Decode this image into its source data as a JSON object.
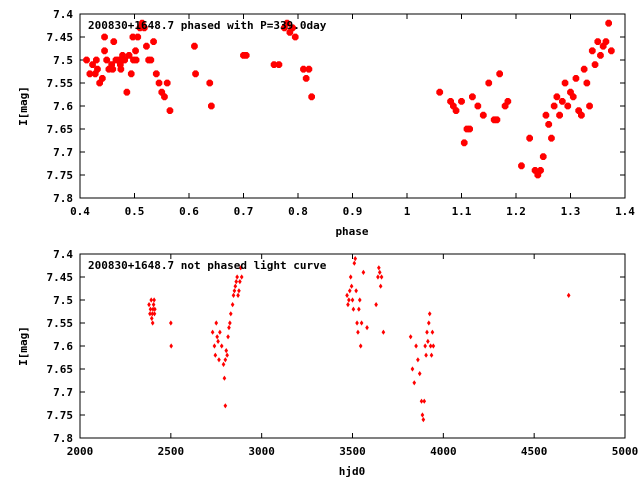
{
  "chart_data": [
    {
      "type": "scatter",
      "title": "200830+1648.7 phased with P=339.0day",
      "xlabel": "phase",
      "ylabel": "I[mag]",
      "xlim": [
        0.4,
        1.4
      ],
      "ylim": [
        7.8,
        7.4
      ],
      "y_inverted": true,
      "grid": false,
      "marker_color": "#ff0000",
      "xticks": [
        "0.4",
        "0.5",
        "0.6",
        "0.7",
        "0.8",
        "0.9",
        "1",
        "1.1",
        "1.2",
        "1.3",
        "1.4"
      ],
      "yticks": [
        "7.4",
        "7.45",
        "7.5",
        "7.55",
        "7.6",
        "7.65",
        "7.7",
        "7.75",
        "7.8"
      ],
      "x": [
        0.412,
        0.418,
        0.423,
        0.428,
        0.432,
        0.436,
        0.441,
        0.445,
        0.449,
        0.453,
        0.458,
        0.462,
        0.466,
        0.47,
        0.474,
        0.478,
        0.482,
        0.486,
        0.49,
        0.494,
        0.498,
        0.502,
        0.506,
        0.51,
        0.514,
        0.518,
        0.522,
        0.526,
        0.53,
        0.535,
        0.54,
        0.545,
        0.55,
        0.555,
        0.56,
        0.565,
        0.61,
        0.612,
        0.638,
        0.641,
        0.7,
        0.705,
        0.756,
        0.765,
        0.775,
        0.78,
        0.785,
        0.79,
        0.795,
        0.81,
        0.815,
        0.82,
        0.825,
        0.43,
        0.445,
        0.46,
        0.475,
        0.497,
        0.503,
        1.06,
        1.08,
        1.085,
        1.09,
        1.1,
        1.105,
        1.11,
        1.115,
        1.12,
        1.13,
        1.14,
        1.15,
        1.16,
        1.165,
        1.17,
        1.18,
        1.185,
        1.21,
        1.225,
        1.235,
        1.24,
        1.245,
        1.25,
        1.255,
        1.26,
        1.265,
        1.27,
        1.275,
        1.28,
        1.285,
        1.29,
        1.295,
        1.3,
        1.305,
        1.31,
        1.315,
        1.32,
        1.325,
        1.33,
        1.335,
        1.34,
        1.345,
        1.35,
        1.355,
        1.36,
        1.365,
        1.37,
        1.375
      ],
      "y": [
        7.5,
        7.53,
        7.51,
        7.53,
        7.52,
        7.55,
        7.54,
        7.45,
        7.5,
        7.52,
        7.51,
        7.46,
        7.5,
        7.5,
        7.51,
        7.49,
        7.5,
        7.57,
        7.49,
        7.53,
        7.5,
        7.48,
        7.45,
        7.43,
        7.42,
        7.43,
        7.47,
        7.5,
        7.5,
        7.46,
        7.53,
        7.55,
        7.57,
        7.58,
        7.55,
        7.61,
        7.47,
        7.53,
        7.55,
        7.6,
        7.49,
        7.49,
        7.51,
        7.51,
        7.43,
        7.42,
        7.44,
        7.43,
        7.45,
        7.52,
        7.54,
        7.52,
        7.58,
        7.5,
        7.48,
        7.52,
        7.52,
        7.45,
        7.5,
        7.57,
        7.59,
        7.6,
        7.61,
        7.59,
        7.68,
        7.65,
        7.65,
        7.58,
        7.6,
        7.62,
        7.55,
        7.63,
        7.63,
        7.53,
        7.6,
        7.59,
        7.73,
        7.67,
        7.74,
        7.75,
        7.74,
        7.71,
        7.62,
        7.64,
        7.67,
        7.6,
        7.58,
        7.62,
        7.59,
        7.55,
        7.6,
        7.57,
        7.58,
        7.54,
        7.61,
        7.62,
        7.52,
        7.55,
        7.6,
        7.48,
        7.51,
        7.46,
        7.49,
        7.47,
        7.46,
        7.42,
        7.48
      ]
    },
    {
      "type": "scatter",
      "title": "200830+1648.7 not phased light curve",
      "xlabel": "hjd0",
      "ylabel": "I[mag]",
      "xlim": [
        2000,
        5000
      ],
      "ylim": [
        7.8,
        7.4
      ],
      "y_inverted": true,
      "grid": false,
      "marker_color": "#ff0000",
      "xticks": [
        "2000",
        "2500",
        "3000",
        "3500",
        "4000",
        "4500",
        "5000"
      ],
      "yticks": [
        "7.4",
        "7.45",
        "7.5",
        "7.55",
        "7.6",
        "7.65",
        "7.7",
        "7.75",
        "7.8"
      ],
      "x": [
        2380,
        2385,
        2388,
        2392,
        2395,
        2398,
        2400,
        2402,
        2405,
        2408,
        2410,
        2412,
        2500,
        2502,
        2730,
        2740,
        2745,
        2750,
        2755,
        2760,
        2765,
        2770,
        2780,
        2790,
        2795,
        2800,
        2805,
        2810,
        2815,
        2820,
        2825,
        2830,
        2840,
        2845,
        2850,
        2855,
        2860,
        2865,
        2870,
        2875,
        2880,
        2885,
        2890,
        2800,
        3470,
        3475,
        3480,
        3485,
        3490,
        3495,
        3500,
        3505,
        3510,
        3515,
        3520,
        3525,
        3530,
        3535,
        3540,
        3545,
        3550,
        3560,
        3580,
        3630,
        3640,
        3645,
        3650,
        3655,
        3660,
        3670,
        3820,
        3830,
        3840,
        3850,
        3860,
        3870,
        3880,
        3885,
        3890,
        3895,
        3900,
        3905,
        3910,
        3915,
        3920,
        3925,
        3930,
        3935,
        3940,
        3945,
        4690
      ],
      "y": [
        7.51,
        7.53,
        7.52,
        7.5,
        7.54,
        7.53,
        7.55,
        7.52,
        7.51,
        7.5,
        7.53,
        7.52,
        7.55,
        7.6,
        7.57,
        7.6,
        7.62,
        7.55,
        7.58,
        7.59,
        7.63,
        7.57,
        7.6,
        7.64,
        7.67,
        7.63,
        7.61,
        7.62,
        7.58,
        7.56,
        7.55,
        7.53,
        7.51,
        7.49,
        7.48,
        7.47,
        7.46,
        7.45,
        7.49,
        7.48,
        7.46,
        7.43,
        7.45,
        7.73,
        7.49,
        7.51,
        7.5,
        7.48,
        7.45,
        7.47,
        7.5,
        7.52,
        7.42,
        7.41,
        7.48,
        7.55,
        7.57,
        7.52,
        7.5,
        7.6,
        7.55,
        7.44,
        7.56,
        7.51,
        7.45,
        7.43,
        7.44,
        7.47,
        7.45,
        7.57,
        7.58,
        7.65,
        7.68,
        7.6,
        7.63,
        7.66,
        7.72,
        7.75,
        7.76,
        7.72,
        7.6,
        7.62,
        7.57,
        7.59,
        7.55,
        7.53,
        7.6,
        7.62,
        7.57,
        7.6,
        7.49
      ]
    }
  ]
}
